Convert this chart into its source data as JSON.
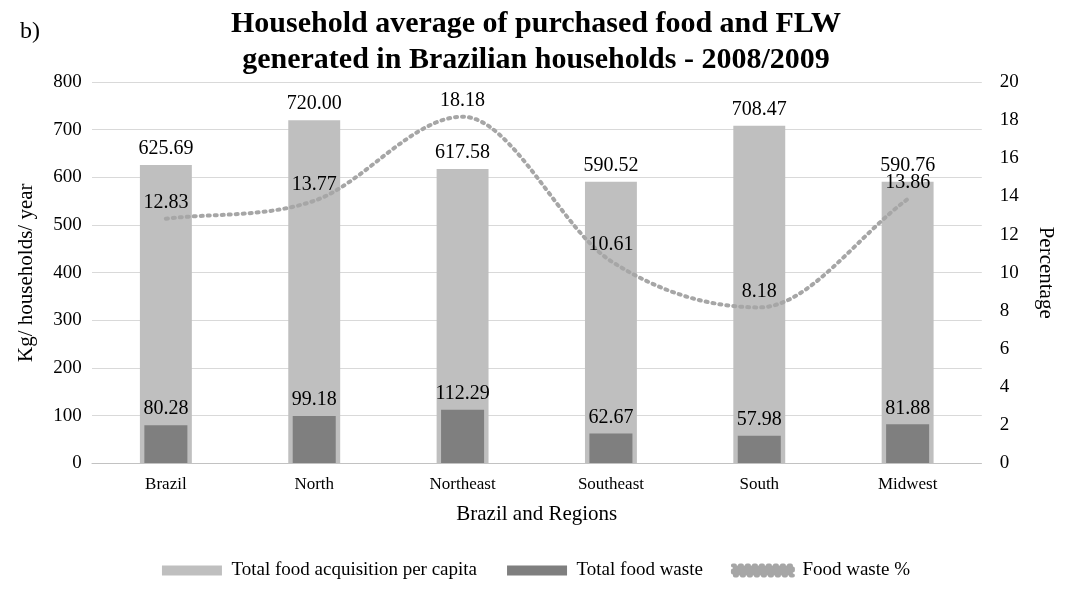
{
  "chart_data": {
    "type": "bar",
    "title": "Household average of purchased food and FLW\ngenerated in Brazilian households - 2008/2009",
    "xlabel": "Brazil and Regions",
    "ylabel": "Kg/ households/ year",
    "y2label": "Percentage",
    "annotations": [
      "b)"
    ],
    "categories": [
      "Brazil",
      "North",
      "Northeast",
      "Southeast",
      "South",
      "Midwest"
    ],
    "series": [
      {
        "name": "Total food acquisition per capita",
        "color": "#bfbfbf",
        "values": [
          625.69,
          720.0,
          617.58,
          590.52,
          708.47,
          590.76
        ],
        "value_labels": [
          "625.69",
          "720.00",
          "617.58",
          "590.52",
          "708.47",
          "590.76"
        ]
      },
      {
        "name": "Total food waste",
        "color": "#7f7f7f",
        "values": [
          80.28,
          99.18,
          112.29,
          62.67,
          57.98,
          81.88
        ],
        "value_labels": [
          "80.28",
          "99.18",
          "112.29",
          "62.67",
          "57.98",
          "81.88"
        ]
      },
      {
        "name": "Food waste %",
        "type": "line",
        "axis": "y2",
        "color": "#a6a6a6",
        "line_style": "dotted",
        "marker": "none",
        "values": [
          12.83,
          13.77,
          18.18,
          10.61,
          8.18,
          13.86
        ],
        "value_labels": [
          "12.83",
          "13.77",
          "18.18",
          "10.61",
          "8.18",
          "13.86"
        ]
      }
    ],
    "ylim": [
      0,
      800
    ],
    "yticks": [
      0,
      100,
      200,
      300,
      400,
      500,
      600,
      700,
      800
    ],
    "y2lim": [
      0,
      20
    ],
    "y2ticks": [
      0,
      2,
      4,
      6,
      8,
      10,
      12,
      14,
      16,
      18,
      20
    ],
    "grid": "y",
    "legend": "bottom"
  }
}
